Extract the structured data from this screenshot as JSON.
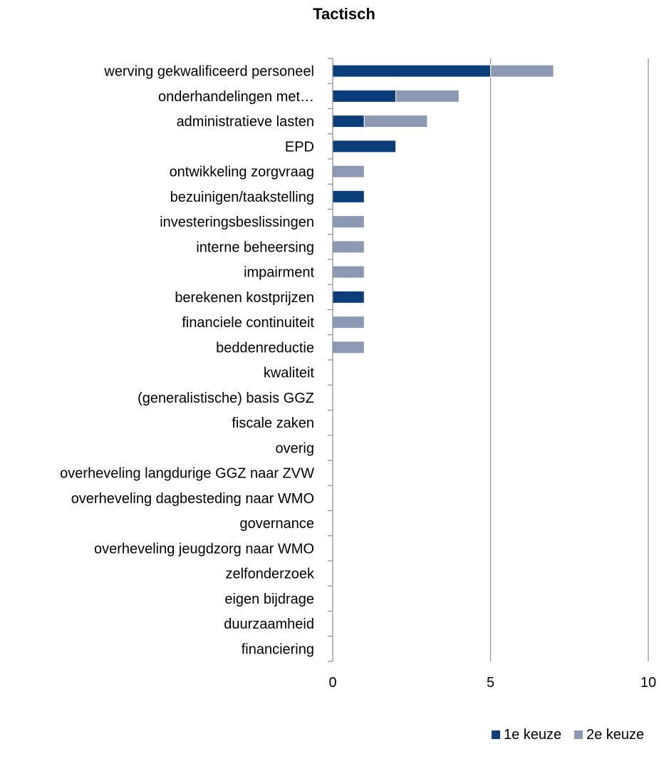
{
  "chart_data": {
    "type": "bar",
    "orientation": "horizontal",
    "stacked": true,
    "title": "Tactisch",
    "xlabel": "",
    "ylabel": "",
    "xlim": [
      0,
      10
    ],
    "xticks": [
      "0",
      "5",
      "10"
    ],
    "grid": true,
    "legend_position": "bottom-right",
    "categories": [
      "werving gekwalificeerd personeel",
      "onderhandelingen met…",
      "administratieve lasten",
      "EPD",
      "ontwikkeling zorgvraag",
      "bezuinigen/taakstelling",
      "investeringsbeslissingen",
      "interne beheersing",
      "impairment",
      "berekenen kostprijzen",
      "financiele continuiteit",
      "beddenreductie",
      "kwaliteit",
      "(generalistische) basis GGZ",
      "fiscale zaken",
      "overig",
      "overheveling langdurige GGZ naar ZVW",
      "overheveling dagbesteding naar WMO",
      "governance",
      "overheveling jeugdzorg naar WMO",
      "zelfonderzoek",
      "eigen bijdrage",
      "duurzaamheid",
      "financiering"
    ],
    "series": [
      {
        "name": "1e keuze",
        "color": "#0b3d7a",
        "values": [
          5,
          2,
          1,
          2,
          0,
          1,
          0,
          0,
          0,
          1,
          0,
          0,
          0,
          0,
          0,
          0,
          0,
          0,
          0,
          0,
          0,
          0,
          0,
          0
        ]
      },
      {
        "name": "2e keuze",
        "color": "#8c99b5",
        "values": [
          2,
          2,
          2,
          0,
          1,
          0,
          1,
          1,
          1,
          0,
          1,
          1,
          0,
          0,
          0,
          0,
          0,
          0,
          0,
          0,
          0,
          0,
          0,
          0
        ]
      }
    ]
  }
}
